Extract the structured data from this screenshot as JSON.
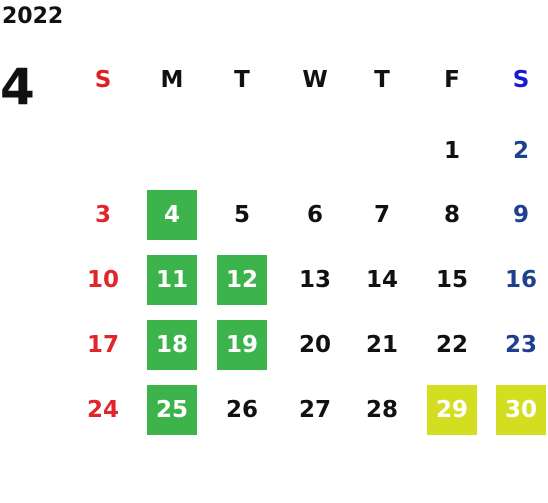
{
  "year": "2022",
  "month": "4",
  "weekdays": [
    "S",
    "M",
    "T",
    "W",
    "T",
    "F",
    "S"
  ],
  "weeks": [
    [
      null,
      null,
      null,
      null,
      null,
      {
        "day": "1"
      },
      {
        "day": "2"
      }
    ],
    [
      {
        "day": "3"
      },
      {
        "day": "4",
        "highlight": "#3cb44b"
      },
      {
        "day": "5"
      },
      {
        "day": "6"
      },
      {
        "day": "7"
      },
      {
        "day": "8"
      },
      {
        "day": "9"
      }
    ],
    [
      {
        "day": "10"
      },
      {
        "day": "11",
        "highlight": "#3cb44b"
      },
      {
        "day": "12",
        "highlight": "#3cb44b"
      },
      {
        "day": "13"
      },
      {
        "day": "14"
      },
      {
        "day": "15"
      },
      {
        "day": "16"
      }
    ],
    [
      {
        "day": "17"
      },
      {
        "day": "18",
        "highlight": "#3cb44b"
      },
      {
        "day": "19",
        "highlight": "#3cb44b"
      },
      {
        "day": "20"
      },
      {
        "day": "21"
      },
      {
        "day": "22"
      },
      {
        "day": "23"
      }
    ],
    [
      {
        "day": "24"
      },
      {
        "day": "25",
        "highlight": "#3cb44b"
      },
      {
        "day": "26"
      },
      {
        "day": "27"
      },
      {
        "day": "28"
      },
      {
        "day": "29",
        "highlight": "#d4de20"
      },
      {
        "day": "30",
        "highlight": "#d4de20"
      }
    ]
  ]
}
